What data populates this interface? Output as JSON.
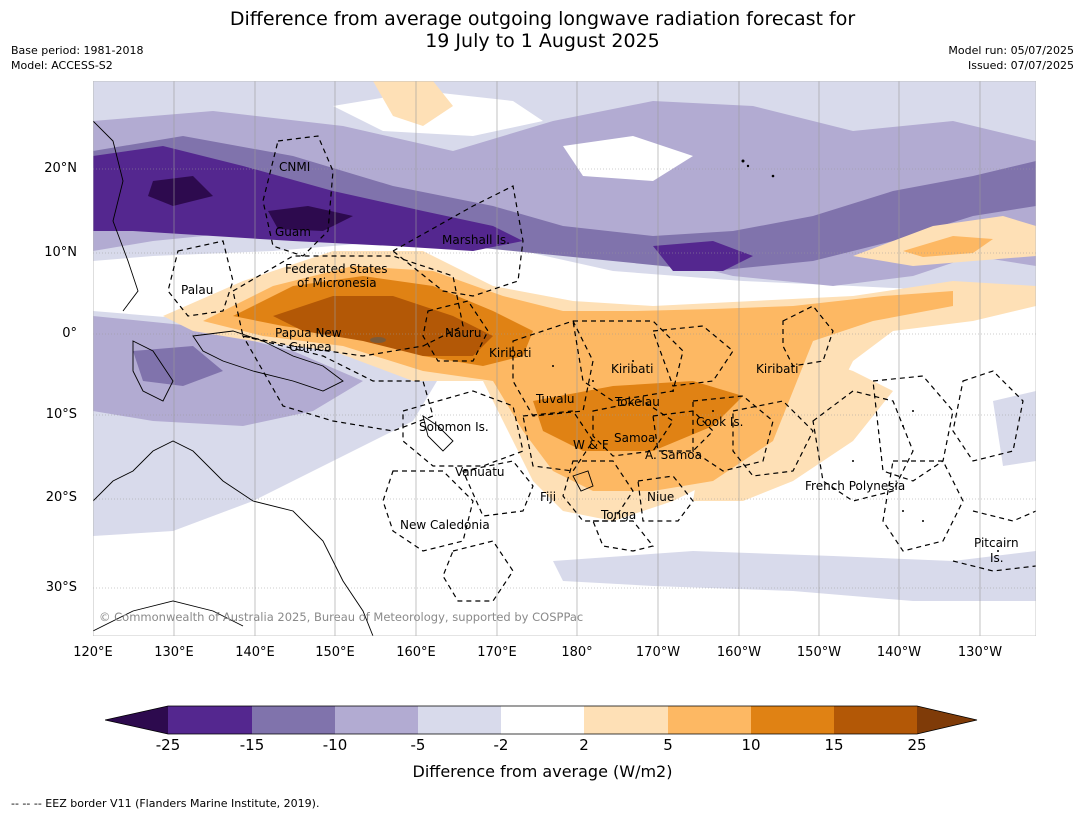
{
  "title_line1": "Difference from average outgoing longwave radiation forecast for",
  "title_line2": "19 July to 1 August 2025",
  "meta_left": {
    "base_period": "Base period: 1981-2018",
    "model": "Model: ACCESS-S2"
  },
  "meta_right": {
    "model_run": "Model run: 05/07/2025",
    "issued": "Issued: 07/07/2025"
  },
  "lat_labels": [
    "20°N",
    "10°N",
    "0°",
    "10°S",
    "20°S",
    "30°S"
  ],
  "lon_labels": [
    "120°E",
    "130°E",
    "140°E",
    "150°E",
    "160°E",
    "170°E",
    "180°",
    "170°W",
    "160°W",
    "150°W",
    "140°W",
    "130°W"
  ],
  "places": {
    "cnmi": "CNMI",
    "guam": "Guam",
    "marshall": "Marshall Is.",
    "fsm1": "Federated States",
    "fsm2": "of Micronesia",
    "palau": "Palau",
    "png1": "Papua New",
    "png2": "Guinea",
    "nauru": "Nauru",
    "kiribati_w": "Kiribati",
    "kiribati_c": "Kiribati",
    "kiribati_e": "Kiribati",
    "tuvalu": "Tuvalu",
    "tokelau": "Tokelau",
    "solomon": "Solomon Is.",
    "cook": "Cook Is.",
    "wf": "W & F",
    "samoa": "Samoa",
    "asamoa": "A. Samoa",
    "vanuatu": "Vanuatu",
    "fiji": "Fiji",
    "niue": "Niue",
    "tonga": "Tonga",
    "frpoly": "French Polynesia",
    "newcal": "New Caledonia",
    "pitcairn1": "Pitcairn",
    "pitcairn2": "Is."
  },
  "copyright": "© Commonwealth of Australia 2025, Bureau of Meteorology, supported by COSPPac",
  "colorbar": {
    "label": "Difference from average (W/m2)",
    "ticks": [
      "-25",
      "-15",
      "-10",
      "-5",
      "-2",
      "2",
      "5",
      "10",
      "15",
      "25"
    ],
    "colors": {
      "below": "#2d0a4e",
      "c1": "#54278f",
      "c2": "#8073ac",
      "c3": "#b2abd2",
      "c4": "#d8daeb",
      "c5": "#ffffff",
      "c6": "#fee0b6",
      "c7": "#fdb863",
      "c8": "#e08214",
      "c9": "#b35806",
      "above": "#7f3b08"
    }
  },
  "footnote": "--  --  -- EEZ border V11 (Flanders Marine Institute, 2019)."
}
